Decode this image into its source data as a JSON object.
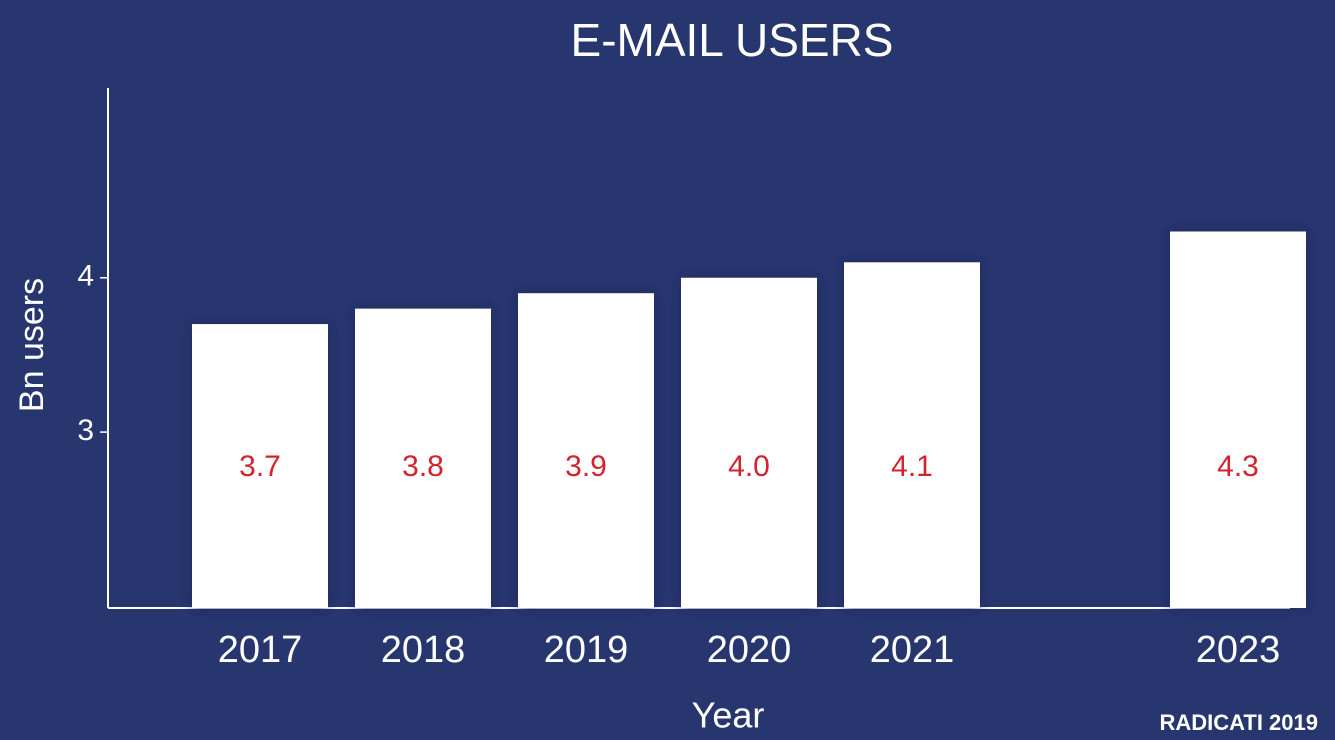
{
  "chart_data": {
    "type": "bar",
    "title": "E-MAIL USERS",
    "categories": [
      "2017",
      "2018",
      "2019",
      "2020",
      "2021",
      null,
      "2023"
    ],
    "values": [
      3.7,
      3.8,
      3.9,
      4.0,
      4.1,
      null,
      4.3
    ],
    "value_labels": [
      "3.7",
      "3.8",
      "3.9",
      "4.0",
      "4.1",
      null,
      "4.3"
    ],
    "color": "#ffffff",
    "label_color": "#d3232e",
    "x_label": "Year",
    "y_label": "Bn users",
    "source": "RADICATI 2019",
    "ylim": [
      1.86,
      5.23
    ],
    "yticks": [
      3,
      4
    ],
    "grid": false
  }
}
